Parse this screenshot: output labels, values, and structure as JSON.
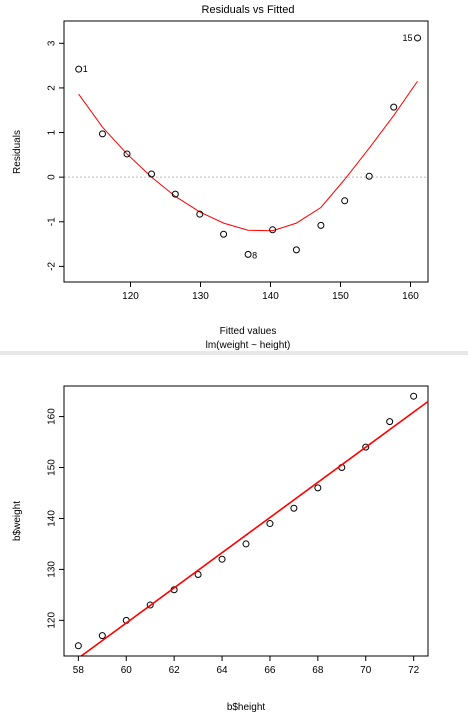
{
  "chart_data": [
    {
      "type": "scatter",
      "title": "Residuals vs Fitted",
      "xlabel": "Fitted values",
      "subtitle": "lm(weight ~ height)",
      "ylabel": "Residuals",
      "xlim": [
        110.5,
        162.5
      ],
      "ylim": [
        -2.35,
        3.5
      ],
      "xticks": [
        "120",
        "130",
        "140",
        "150",
        "160"
      ],
      "xtick_values": [
        120,
        130,
        140,
        150,
        160
      ],
      "yticks": [
        "-2",
        "-1",
        "0",
        "1",
        "2",
        "3"
      ],
      "ytick_values": [
        -2,
        -1,
        0,
        1,
        2,
        3
      ],
      "points": [
        {
          "x": 112.6,
          "y": 2.42,
          "label": "1"
        },
        {
          "x": 116.0,
          "y": 0.97
        },
        {
          "x": 119.5,
          "y": 0.52
        },
        {
          "x": 123.0,
          "y": 0.07
        },
        {
          "x": 126.4,
          "y": -0.38
        },
        {
          "x": 129.9,
          "y": -0.83
        },
        {
          "x": 133.3,
          "y": -1.28
        },
        {
          "x": 136.8,
          "y": -1.73,
          "label": "8"
        },
        {
          "x": 140.3,
          "y": -1.18
        },
        {
          "x": 143.7,
          "y": -1.63
        },
        {
          "x": 147.2,
          "y": -1.08
        },
        {
          "x": 150.6,
          "y": -0.53
        },
        {
          "x": 154.1,
          "y": 0.02
        },
        {
          "x": 157.6,
          "y": 1.57
        },
        {
          "x": 161.0,
          "y": 3.12,
          "label": "15"
        }
      ],
      "smooth_line": {
        "x": [
          112.6,
          116.0,
          119.5,
          123.0,
          126.4,
          129.9,
          133.3,
          136.8,
          140.3,
          143.7,
          147.2,
          150.6,
          154.1,
          157.6,
          161.0
        ],
        "y": [
          1.86,
          1.12,
          0.52,
          0.0,
          -0.43,
          -0.78,
          -1.03,
          -1.19,
          -1.2,
          -1.03,
          -0.68,
          -0.05,
          0.65,
          1.38,
          2.15
        ]
      },
      "reference_line_y": 0,
      "colors": {
        "points": "#000000",
        "smooth": "#ff0000",
        "reference": "#bbbbbb"
      }
    },
    {
      "type": "scatter",
      "xlabel": "b$height",
      "ylabel": "b$weight",
      "xlim": [
        57.4,
        72.6
      ],
      "ylim": [
        113,
        166
      ],
      "xticks": [
        "58",
        "60",
        "62",
        "64",
        "66",
        "68",
        "70",
        "72"
      ],
      "xtick_values": [
        58,
        60,
        62,
        64,
        66,
        68,
        70,
        72
      ],
      "yticks": [
        "120",
        "130",
        "140",
        "150",
        "160"
      ],
      "ytick_values": [
        120,
        130,
        140,
        150,
        160
      ],
      "x": [
        58,
        59,
        60,
        61,
        62,
        63,
        64,
        65,
        66,
        67,
        68,
        69,
        70,
        71,
        72
      ],
      "y": [
        115,
        117,
        120,
        123,
        126,
        129,
        132,
        135,
        139,
        142,
        146,
        150,
        154,
        159,
        164
      ],
      "fit_line": {
        "intercept": -87.52,
        "slope": 3.45
      },
      "colors": {
        "points": "#000000",
        "fit": "#ff0000"
      }
    }
  ]
}
